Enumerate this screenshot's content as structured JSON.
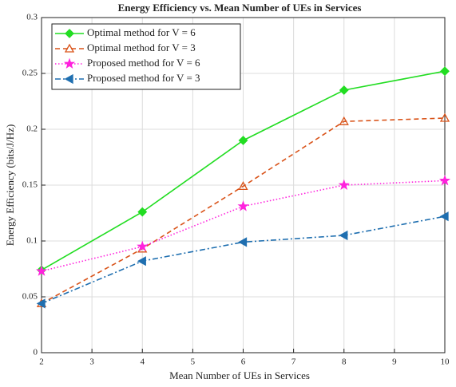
{
  "chart_data": {
    "type": "line",
    "title": "Energy Efficiency vs. Mean Number of UEs in Services",
    "xlabel": "Mean Number of UEs in Services",
    "ylabel": "Energy Efficiency (bits/J/Hz)",
    "x": [
      2,
      4,
      6,
      8,
      10
    ],
    "series": [
      {
        "name": "Optimal method for V = 6",
        "color": "#22dd22",
        "marker": "diamond",
        "linestyle": "solid",
        "values": [
          0.074,
          0.126,
          0.19,
          0.235,
          0.252
        ]
      },
      {
        "name": "Optimal method for V = 3",
        "color": "#d95319",
        "marker": "triangle-up",
        "linestyle": "dashed",
        "values": [
          0.044,
          0.093,
          0.149,
          0.207,
          0.21
        ]
      },
      {
        "name": "Proposed method for V = 6",
        "color": "#ff22dd",
        "marker": "star",
        "linestyle": "dotted",
        "values": [
          0.073,
          0.095,
          0.131,
          0.15,
          0.154
        ]
      },
      {
        "name": "Proposed method for V = 3",
        "color": "#1f6fb0",
        "marker": "triangle-left",
        "linestyle": "dashdot",
        "values": [
          0.044,
          0.082,
          0.099,
          0.105,
          0.122
        ]
      }
    ],
    "xlim": [
      2,
      10
    ],
    "xticks": [
      2,
      3,
      4,
      5,
      6,
      7,
      8,
      9,
      10
    ],
    "ylim": [
      0,
      0.3
    ],
    "yticks": [
      0,
      0.05,
      0.1,
      0.15,
      0.2,
      0.25,
      0.3
    ],
    "grid": true,
    "legend": "upper left"
  }
}
